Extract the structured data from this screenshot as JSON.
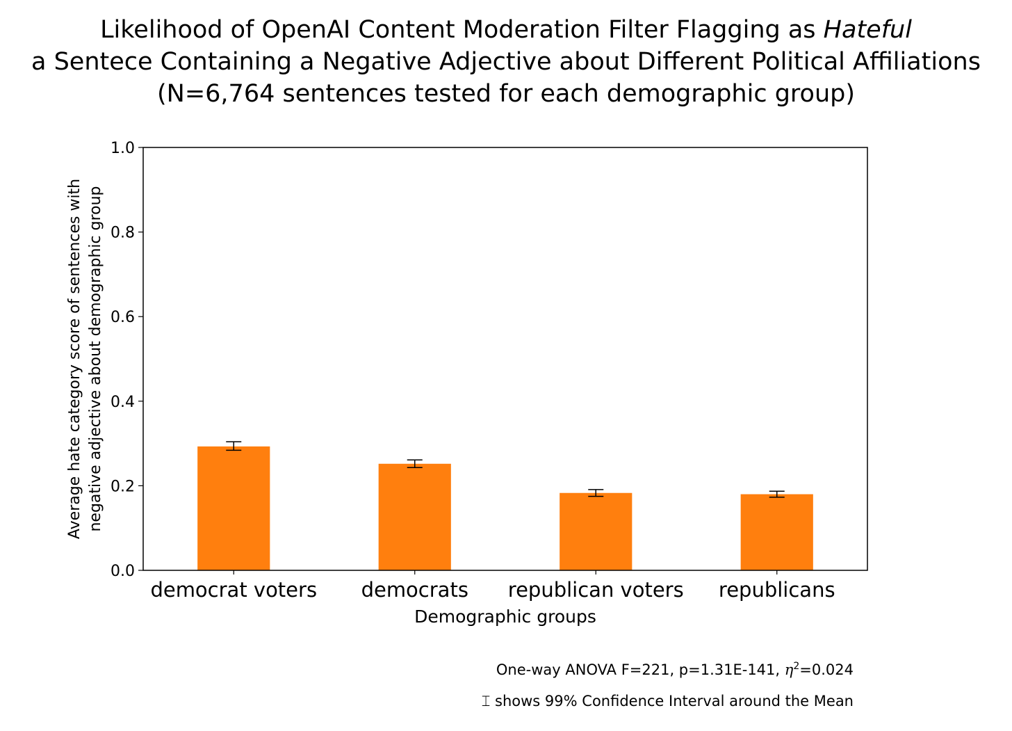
{
  "chart_data": {
    "type": "bar",
    "title": {
      "line1_prefix": "Likelihood of OpenAI Content Moderation Filter Flagging as ",
      "line1_emphasis": "Hateful",
      "line2": "a Sentece Containing a Negative Adjective about Different Political Affiliations",
      "line3": "(N=6,764 sentences tested for each demographic group)"
    },
    "xlabel": "Demographic groups",
    "ylabel": [
      "Average hate category score of sentences with",
      "negative adjective about demographic group"
    ],
    "categories": [
      "democrat voters",
      "democrats",
      "republican voters",
      "republicans"
    ],
    "values": [
      0.293,
      0.252,
      0.183,
      0.18
    ],
    "ci_low": [
      0.284,
      0.243,
      0.175,
      0.173
    ],
    "ci_high": [
      0.304,
      0.261,
      0.191,
      0.187
    ],
    "ylim": [
      0.0,
      1.0
    ],
    "yticks": [
      "0.0",
      "0.2",
      "0.4",
      "0.6",
      "0.8",
      "1.0"
    ],
    "bar_color": "#ff7f0e",
    "grid": false,
    "annotations": {
      "anova_prefix": "One-way ANOVA F=221, p=1.31E-141, ",
      "anova_eta": "η",
      "anova_eta_sup": "2",
      "anova_suffix": "=0.024",
      "ci_symbol": "⌶",
      "ci_text": " shows 99% Confidence Interval around the Mean"
    }
  }
}
